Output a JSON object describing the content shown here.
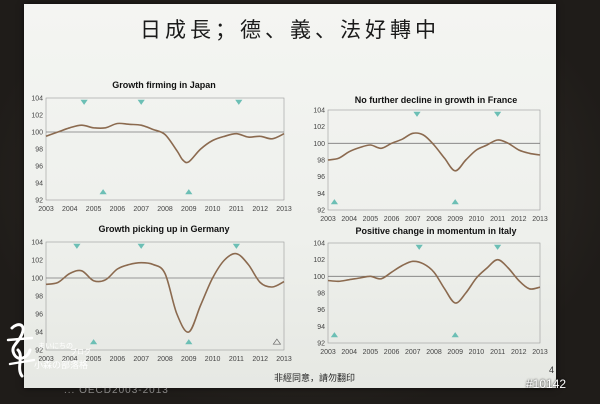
{
  "slide": {
    "title": "日成長；德、義、法好轉中",
    "footer_notice": "非經同意，請勿翻印",
    "page_number": "4",
    "source_line": "... OECD2003-2013"
  },
  "watermark": {
    "tag": "#10142",
    "logo_text": [
      "まいにちの",
      "ブログ",
      "小森の部落格"
    ]
  },
  "colors": {
    "line": "#8b6a4f",
    "baseline": "#7a7a7a",
    "marker": "#6cbfb5",
    "axis": "#9a9a9a"
  },
  "chart_data": [
    {
      "type": "line",
      "title": "Growth firming in Japan",
      "x": [
        2003,
        2003.5,
        2004,
        2004.5,
        2005,
        2005.5,
        2006,
        2006.5,
        2007,
        2007.5,
        2008,
        2008.5,
        2008.75,
        2009,
        2009.5,
        2010,
        2010.5,
        2011,
        2011.5,
        2012,
        2012.5,
        2013
      ],
      "y": [
        99.5,
        100.0,
        100.5,
        100.8,
        100.5,
        100.5,
        101.0,
        100.9,
        100.8,
        100.3,
        99.7,
        97.8,
        96.7,
        96.5,
        98.0,
        99.0,
        99.5,
        99.8,
        99.4,
        99.5,
        99.2,
        99.8
      ],
      "xticks": [
        "2003",
        "2004",
        "2005",
        "2006",
        "2007",
        "2008",
        "2009",
        "2010",
        "2011",
        "2012",
        "2013"
      ],
      "yticks": [
        92,
        94,
        96,
        98,
        100,
        102,
        104
      ],
      "ylim": [
        92,
        104
      ],
      "baseline": 100,
      "markers": [
        {
          "x": 2004.6,
          "dir": "down"
        },
        {
          "x": 2005.4,
          "dir": "up"
        },
        {
          "x": 2007.0,
          "dir": "down"
        },
        {
          "x": 2009.0,
          "dir": "up"
        },
        {
          "x": 2011.1,
          "dir": "down"
        }
      ]
    },
    {
      "type": "line",
      "title": "No further decline in growth in France",
      "x": [
        2003,
        2003.5,
        2004,
        2004.5,
        2005,
        2005.5,
        2006,
        2006.5,
        2007,
        2007.5,
        2008,
        2008.5,
        2009,
        2009.5,
        2010,
        2010.5,
        2011,
        2011.5,
        2012,
        2012.5,
        2013
      ],
      "y": [
        98.0,
        98.2,
        99.0,
        99.5,
        99.8,
        99.4,
        100.0,
        100.5,
        101.2,
        101.0,
        99.8,
        98.2,
        96.7,
        98.0,
        99.2,
        99.8,
        100.4,
        100.0,
        99.2,
        98.8,
        98.6
      ],
      "xticks": [
        "2003",
        "2004",
        "2005",
        "2006",
        "2007",
        "2008",
        "2009",
        "2010",
        "2011",
        "2012",
        "2013"
      ],
      "yticks": [
        92,
        94,
        96,
        98,
        100,
        102,
        104
      ],
      "ylim": [
        92,
        104
      ],
      "baseline": 100,
      "markers": [
        {
          "x": 2003.3,
          "dir": "up"
        },
        {
          "x": 2007.2,
          "dir": "down"
        },
        {
          "x": 2009.0,
          "dir": "up"
        },
        {
          "x": 2011.0,
          "dir": "down"
        }
      ]
    },
    {
      "type": "line",
      "title": "Growth picking up in Germany",
      "x": [
        2003,
        2003.5,
        2004,
        2004.5,
        2005,
        2005.5,
        2006,
        2006.5,
        2007,
        2007.5,
        2008,
        2008.5,
        2009,
        2009.5,
        2010,
        2010.5,
        2011,
        2011.5,
        2012,
        2012.5,
        2013
      ],
      "y": [
        99.3,
        99.5,
        100.5,
        100.8,
        99.7,
        99.8,
        101.0,
        101.5,
        101.7,
        101.5,
        100.5,
        96.0,
        94.0,
        97.0,
        100.0,
        102.0,
        102.7,
        101.5,
        99.5,
        99.0,
        99.6
      ],
      "xticks": [
        "2003",
        "2004",
        "2005",
        "2006",
        "2007",
        "2008",
        "2009",
        "2010",
        "2011",
        "2012",
        "2013"
      ],
      "yticks": [
        92,
        94,
        96,
        98,
        100,
        102,
        104
      ],
      "ylim": [
        92,
        104
      ],
      "baseline": 100,
      "markers": [
        {
          "x": 2004.3,
          "dir": "down"
        },
        {
          "x": 2005.0,
          "dir": "up"
        },
        {
          "x": 2007.0,
          "dir": "down"
        },
        {
          "x": 2009.0,
          "dir": "up"
        },
        {
          "x": 2011.0,
          "dir": "down"
        },
        {
          "x": 2012.7,
          "dir": "up-outline"
        }
      ]
    },
    {
      "type": "line",
      "title": "Positive change in momentum in Italy",
      "x": [
        2003,
        2003.5,
        2004,
        2004.5,
        2005,
        2005.5,
        2006,
        2006.5,
        2007,
        2007.5,
        2008,
        2008.5,
        2009,
        2009.5,
        2010,
        2010.5,
        2011,
        2011.5,
        2012,
        2012.5,
        2013
      ],
      "y": [
        99.5,
        99.4,
        99.6,
        99.8,
        100.0,
        99.7,
        100.5,
        101.3,
        101.8,
        101.5,
        100.5,
        98.5,
        96.8,
        98.0,
        99.8,
        101.0,
        102.0,
        101.0,
        99.5,
        98.5,
        98.7
      ],
      "xticks": [
        "2003",
        "2004",
        "2005",
        "2006",
        "2007",
        "2008",
        "2009",
        "2010",
        "2011",
        "2012",
        "2013"
      ],
      "yticks": [
        92,
        94,
        96,
        98,
        100,
        102,
        104
      ],
      "ylim": [
        92,
        104
      ],
      "baseline": 100,
      "markers": [
        {
          "x": 2003.3,
          "dir": "up"
        },
        {
          "x": 2007.3,
          "dir": "down"
        },
        {
          "x": 2009.0,
          "dir": "up"
        },
        {
          "x": 2011.0,
          "dir": "down"
        }
      ]
    }
  ]
}
